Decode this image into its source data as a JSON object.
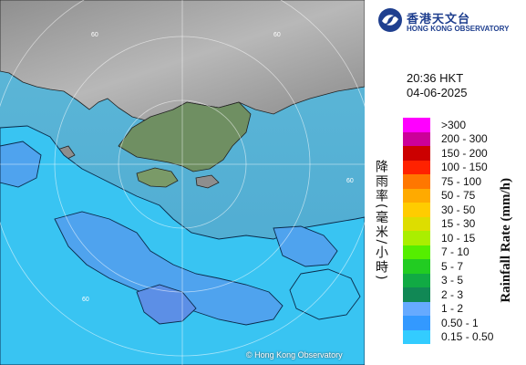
{
  "header": {
    "agency_zh": "香港天文台",
    "agency_en": "HONG KONG OBSERVATORY"
  },
  "timestamp": {
    "time": "20:36 HKT",
    "date": "04-06-2025"
  },
  "legend": {
    "title_zh": "降雨率(毫米/小時)",
    "title_en": "Rainfall Rate (mm/h)",
    "items": [
      {
        "label": ">300",
        "color": "#ff00ff"
      },
      {
        "label": "200 - 300",
        "color": "#cc0099"
      },
      {
        "label": "150 - 200",
        "color": "#cc0000"
      },
      {
        "label": "100 - 150",
        "color": "#ff2200"
      },
      {
        "label": "75 - 100",
        "color": "#ff7700"
      },
      {
        "label": "50 - 75",
        "color": "#ffaa00"
      },
      {
        "label": "30 - 50",
        "color": "#ffcc00"
      },
      {
        "label": "15 - 30",
        "color": "#dddd00"
      },
      {
        "label": "10 - 15",
        "color": "#aaee00"
      },
      {
        "label": "7 - 10",
        "color": "#55ee00"
      },
      {
        "label": "5 - 7",
        "color": "#22cc22"
      },
      {
        "label": "3 - 5",
        "color": "#11aa44"
      },
      {
        "label": "2 - 3",
        "color": "#118855"
      },
      {
        "label": "1 - 2",
        "color": "#66aaff"
      },
      {
        "label": "0.50 - 1",
        "color": "#3399ff"
      },
      {
        "label": "0.15 - 0.50",
        "color": "#33ccff"
      }
    ]
  },
  "map": {
    "ring_labels": [
      "60",
      "60",
      "60",
      "60"
    ],
    "copyright": "© Hong Kong Observatory"
  }
}
